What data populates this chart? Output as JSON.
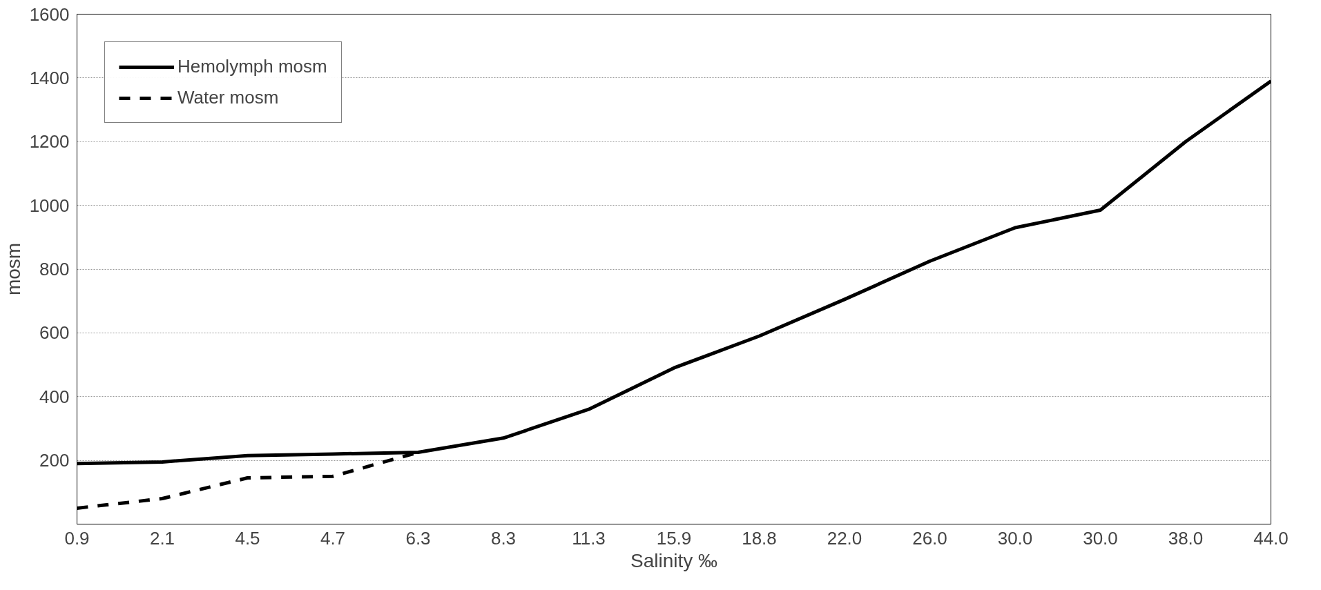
{
  "chart_data": {
    "type": "line",
    "xlabel": "Salinity ‰",
    "ylabel": "mosm",
    "categories": [
      "0.9",
      "2.1",
      "4.5",
      "4.7",
      "6.3",
      "8.3",
      "11.3",
      "15.9",
      "18.8",
      "22.0",
      "26.0",
      "30.0",
      "30.0",
      "38.0",
      "44.0"
    ],
    "series": [
      {
        "name": "Hemolymph mosm",
        "color": "#000000",
        "line_style": "solid",
        "values": [
          190,
          195,
          215,
          220,
          225,
          270,
          360,
          490,
          590,
          705,
          825,
          930,
          985,
          1200,
          1390
        ]
      },
      {
        "name": "Water mosm",
        "color": "#000000",
        "line_style": "dashed",
        "values": [
          50,
          80,
          145,
          150,
          225,
          null,
          null,
          null,
          null,
          null,
          null,
          null,
          null,
          null,
          null
        ]
      }
    ],
    "ylim": [
      0,
      1600
    ],
    "yticks": [
      {
        "value": 0,
        "label": null
      },
      200,
      400,
      600,
      800,
      1000,
      1200,
      1400,
      1600
    ],
    "grid": "y",
    "legend": "top left"
  }
}
